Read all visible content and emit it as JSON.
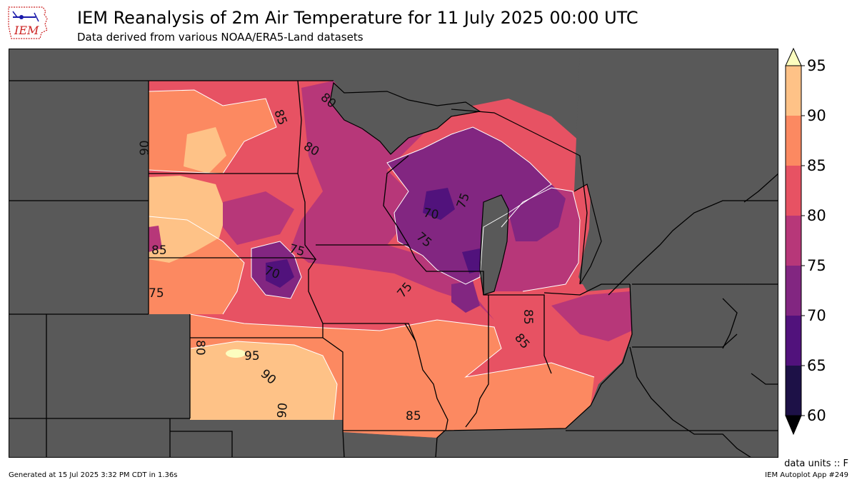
{
  "header": {
    "title": "IEM Reanalysis of 2m Air Temperature for 11 July 2025 00:00 UTC",
    "subtitle": "Data derived from various NOAA/ERA5-Land datasets",
    "logo_text": "IEM"
  },
  "map": {
    "contour_labels": [
      "85",
      "80",
      "80",
      "90",
      "85",
      "75",
      "70",
      "70",
      "75",
      "75",
      "75",
      "75",
      "85",
      "85",
      "80",
      "95",
      "90",
      "90",
      "85"
    ]
  },
  "colorbar": {
    "ticks": [
      "60",
      "65",
      "70",
      "75",
      "80",
      "85",
      "90",
      "95"
    ],
    "colors": [
      "#1d1147",
      "#51127c",
      "#822681",
      "#b73779",
      "#e75263",
      "#fc8961",
      "#fec287",
      "#fcfdbf"
    ],
    "extend_low_color": "#000004",
    "extend_high_color": "#fcfdbf"
  },
  "footer": {
    "units": "data units :: F",
    "generated": "Generated at 15 Jul 2025 3:32 PM CDT in 1.36s",
    "app": "IEM Autoplot App #249"
  }
}
